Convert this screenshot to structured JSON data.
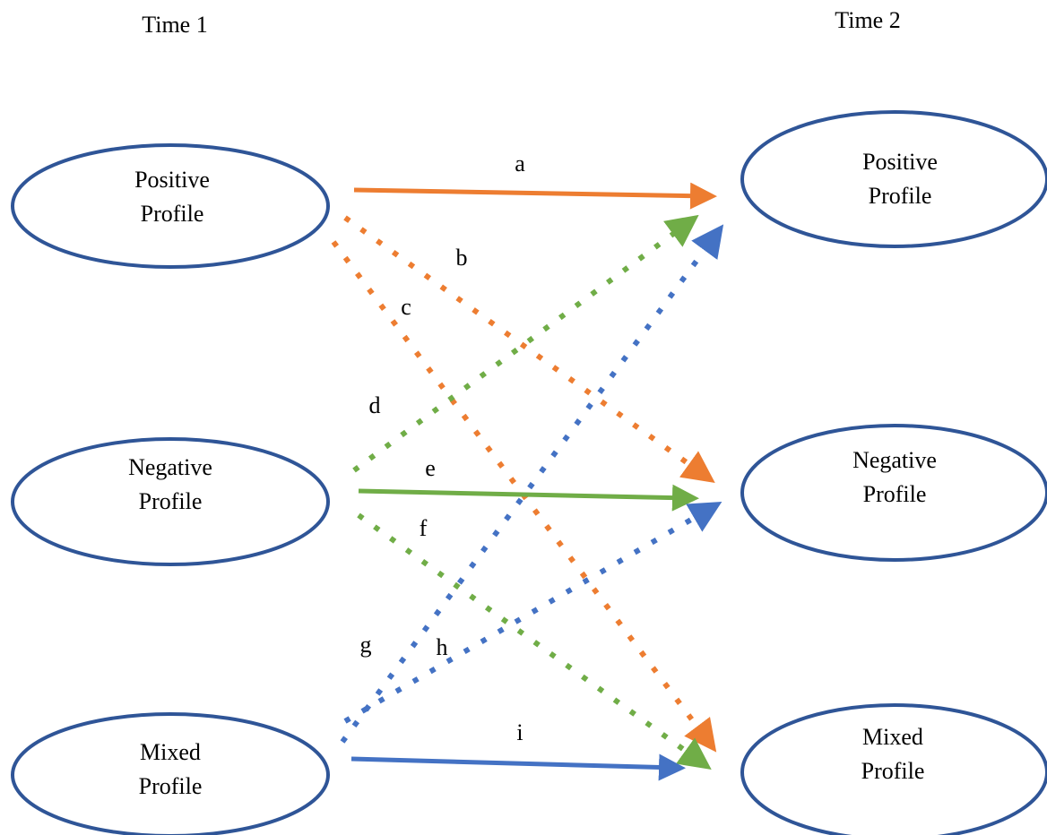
{
  "header": {
    "left": "Time 1",
    "right": "Time 2"
  },
  "nodes": [
    {
      "lines": [
        "Positive",
        "Profile"
      ]
    },
    {
      "lines": [
        "Negative",
        "Profile"
      ]
    },
    {
      "lines": [
        "Mixed",
        "Profile"
      ]
    },
    {
      "lines": [
        "Positive",
        "Profile"
      ]
    },
    {
      "lines": [
        "Negative",
        "Profile"
      ]
    },
    {
      "lines": [
        "Mixed",
        "Profile"
      ]
    }
  ],
  "edges": [
    "a",
    "b",
    "c",
    "d",
    "e",
    "f",
    "g",
    "h",
    "i"
  ]
}
